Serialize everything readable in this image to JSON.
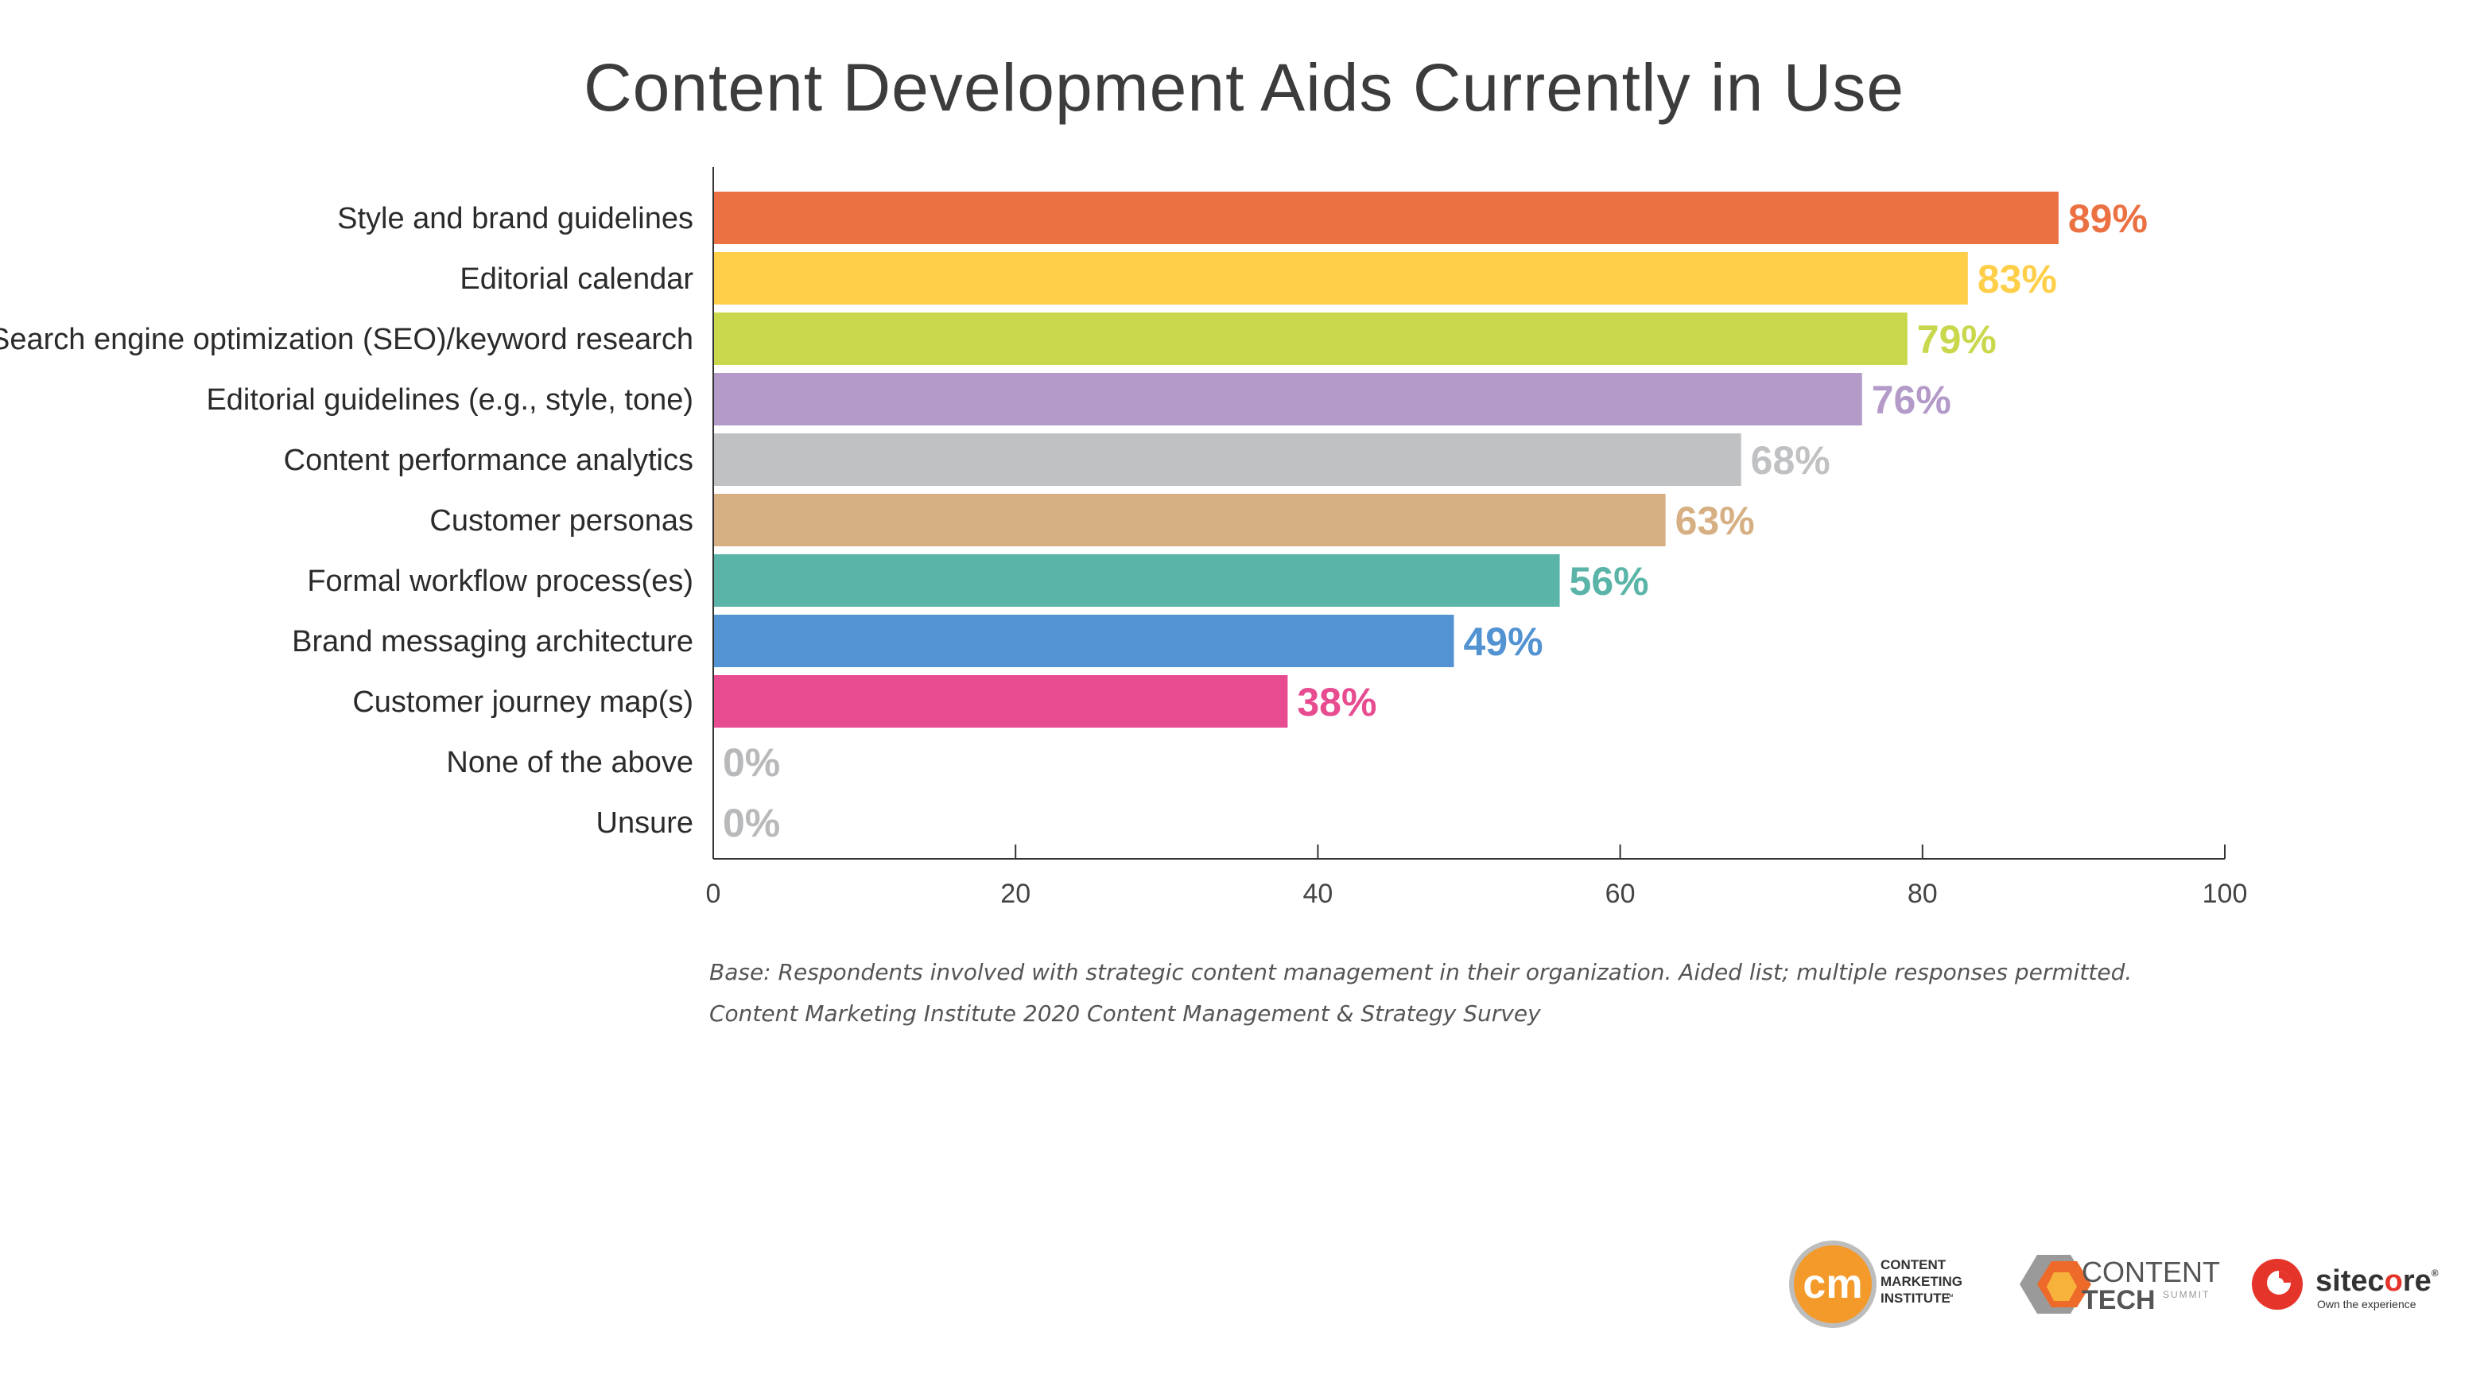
{
  "chart_data": {
    "type": "bar",
    "orientation": "horizontal",
    "title": "Content Development Aids Currently in Use",
    "categories": [
      "Style and brand guidelines",
      "Editorial calendar",
      "Search engine optimization (SEO)/keyword research",
      "Editorial guidelines (e.g., style, tone)",
      "Content performance analytics",
      "Customer personas",
      "Formal workflow process(es)",
      "Brand messaging architecture",
      "Customer journey map(s)",
      "None of the above",
      "Unsure"
    ],
    "values": [
      89,
      83,
      79,
      76,
      68,
      63,
      56,
      49,
      38,
      0,
      0
    ],
    "value_labels": [
      "89%",
      "83%",
      "79%",
      "76%",
      "68%",
      "63%",
      "56%",
      "49%",
      "38%",
      "0%",
      "0%"
    ],
    "colors": [
      "#ec7142",
      "#ffcf4a",
      "#c9d74c",
      "#b39ac9",
      "#c0c1c3",
      "#d6af82",
      "#5bb4a8",
      "#5393d2",
      "#e84c90",
      "#b8b9bb",
      "#b8b9bb"
    ],
    "xlim": [
      0,
      100
    ],
    "xticks": [
      "0",
      "20",
      "40",
      "60",
      "80",
      "100"
    ],
    "grid": false,
    "legend": "none"
  },
  "footnotes": {
    "base": "Base: Respondents involved with strategic content management in their organization. Aided list; multiple responses permitted.",
    "source": "Content Marketing Institute 2020 Content Management & Strategy Survey"
  },
  "logos": {
    "cmi": {
      "mark": "cm",
      "lines": [
        "CONTENT",
        "MARKETING",
        "INSTITUTE"
      ],
      "tm": "™"
    },
    "cts": {
      "top": "CONTENT",
      "bottom": "TECH",
      "sub": "SUMMIT"
    },
    "sitecore": {
      "name_a": "sitec",
      "name_o": "o",
      "name_b": "re",
      "reg": "®",
      "tagline": "Own the experience"
    }
  }
}
